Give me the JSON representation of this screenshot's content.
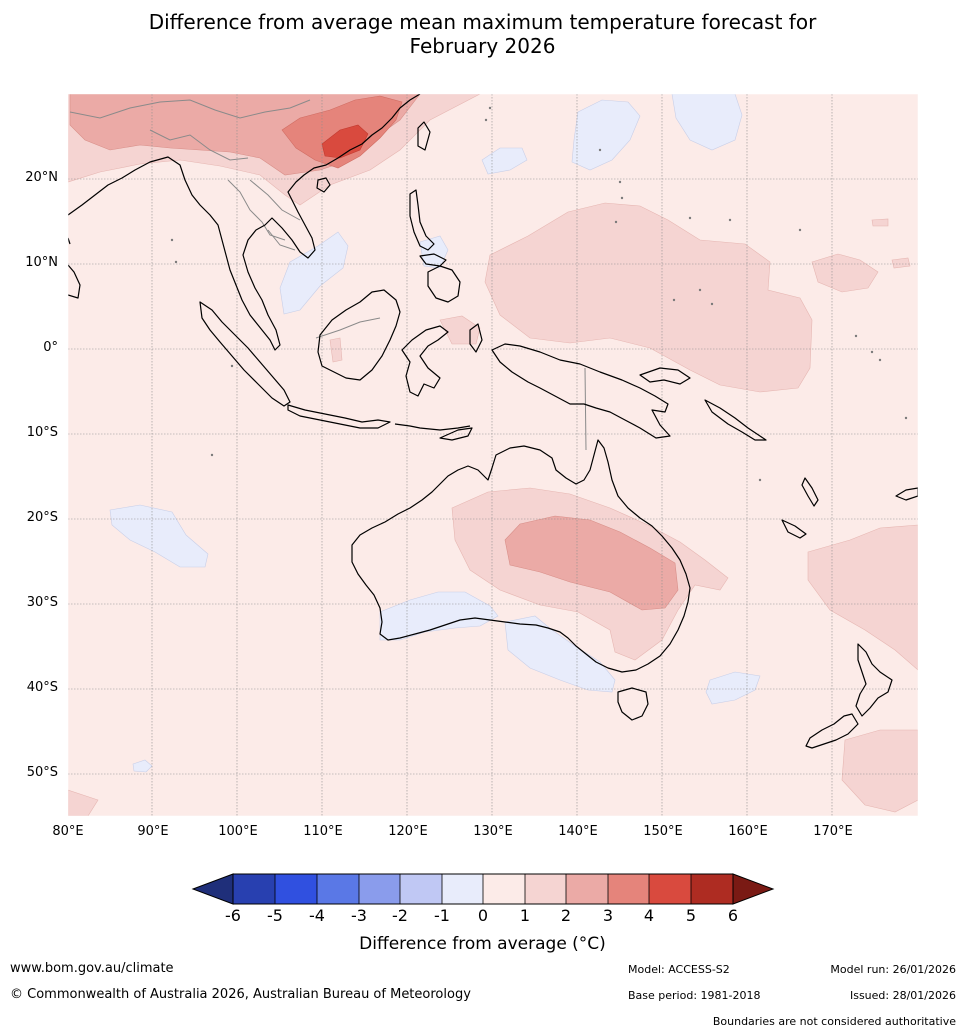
{
  "title": {
    "line1": "Difference from average mean maximum temperature forecast for",
    "line2": "February 2026"
  },
  "map": {
    "extent": {
      "lon_min": 80,
      "lon_max": 180,
      "lat_min": -55,
      "lat_max": 30
    },
    "background_anomaly_range": "0 to 1",
    "lat_ticks": [
      {
        "value": 20,
        "label": "20°N"
      },
      {
        "value": 10,
        "label": "10°N"
      },
      {
        "value": 0,
        "label": "0°"
      },
      {
        "value": -10,
        "label": "10°S"
      },
      {
        "value": -20,
        "label": "20°S"
      },
      {
        "value": -30,
        "label": "30°S"
      },
      {
        "value": -40,
        "label": "40°S"
      },
      {
        "value": -50,
        "label": "50°S"
      }
    ],
    "lon_ticks": [
      {
        "value": 80,
        "label": "80°E"
      },
      {
        "value": 90,
        "label": "90°E"
      },
      {
        "value": 100,
        "label": "100°E"
      },
      {
        "value": 110,
        "label": "110°E"
      },
      {
        "value": 120,
        "label": "120°E"
      },
      {
        "value": 130,
        "label": "130°E"
      },
      {
        "value": 140,
        "label": "140°E"
      },
      {
        "value": 150,
        "label": "150°E"
      },
      {
        "value": 160,
        "label": "160°E"
      },
      {
        "value": 170,
        "label": "170°E"
      }
    ]
  },
  "colorbar": {
    "title": "Difference from average (°C)",
    "ticks": [
      "-6",
      "-5",
      "-4",
      "-3",
      "-2",
      "-1",
      "0",
      "1",
      "2",
      "3",
      "4",
      "5",
      "6"
    ],
    "colors": {
      "below_-6": "#1f2f7a",
      "-6_to_-5": "#2840b0",
      "-5_to_-4": "#3050e0",
      "-4_to_-3": "#5a78e6",
      "-3_to_-2": "#8a9cec",
      "-2_to_-1": "#c0c8f4",
      "-1_to_0": "#e8ecfb",
      "0_to_1": "#fcebe8",
      "1_to_2": "#f5d4d2",
      "2_to_3": "#ebaaa6",
      "3_to_4": "#e5847b",
      "4_to_5": "#d94a3e",
      "5_to_6": "#ae2c22",
      "above_6": "#7a1a14"
    }
  },
  "footer": {
    "url": "www.bom.gov.au/climate",
    "copyright": "© Commonwealth of Australia 2026, Australian Bureau of Meteorology",
    "model": "Model: ACCESS-S2",
    "base_period": "Base period: 1981-2018",
    "model_run": "Model run: 26/01/2026",
    "issued": "Issued: 28/01/2026",
    "disclaimer": "Boundaries are not considered authoritative"
  }
}
